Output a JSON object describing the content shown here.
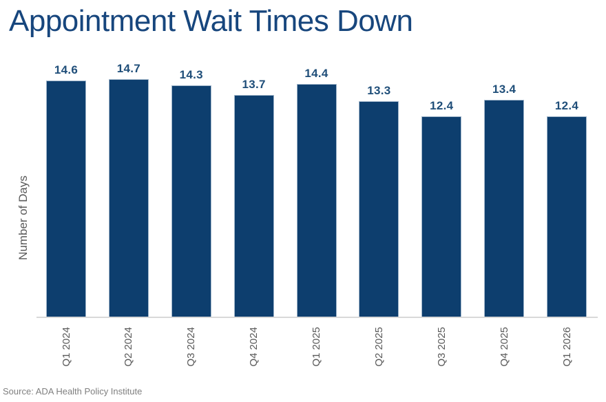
{
  "page": {
    "background": "#ffffff"
  },
  "header": {
    "title": "Appointment Wait Times Down"
  },
  "chart_data": {
    "type": "bar",
    "title": "Appointment Wait Times Down",
    "categories": [
      "Q1 2024",
      "Q2 2024",
      "Q3 2024",
      "Q4 2024",
      "Q1 2025",
      "Q2 2025",
      "Q3 2025",
      "Q4 2025",
      "Q1 2026"
    ],
    "values": [
      14.6,
      14.7,
      14.3,
      13.7,
      14.4,
      13.3,
      12.4,
      13.4,
      12.4
    ],
    "value_labels": [
      "14.6",
      "14.7",
      "14.3",
      "13.7",
      "14.4",
      "13.3",
      "12.4",
      "13.4",
      "12.4"
    ],
    "xlabel": "",
    "ylabel": "Number of Days",
    "ylim": [
      0,
      16
    ],
    "grid": false,
    "legend": null,
    "x_tick_rotation_deg": 90,
    "bar_color": "#0d3e6e",
    "bar_edge_color": "#9fb5ca",
    "value_label_color": "#1f4e79",
    "title_color": "#17467d",
    "axis_line_color": "#d9d9d9",
    "tick_label_color": "#595959"
  },
  "footer": {
    "source": "Source: ADA Health Policy Institute"
  }
}
